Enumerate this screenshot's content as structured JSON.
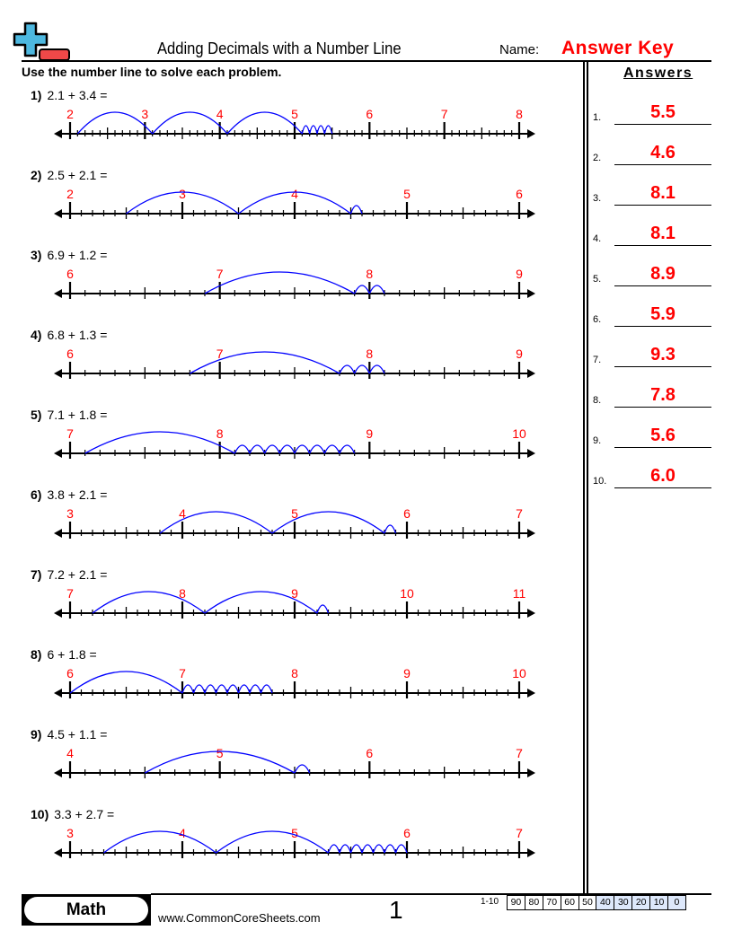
{
  "header": {
    "title": "Adding Decimals with a Number Line",
    "name_label": "Name:",
    "name_value": "Answer Key",
    "instructions": "Use the number line to solve each problem.",
    "logo_icon": "plus-minus-logo-icon"
  },
  "colors": {
    "label_red": "#ff0000",
    "jump_blue": "#0000ff",
    "score_highlight": "#dde8fb"
  },
  "problems": [
    {
      "number": "1)",
      "expression": "2.1 + 3.4 =",
      "min": 2,
      "max": 8,
      "start": 2.1,
      "whole_jumps": 3,
      "tenth_jumps": 4
    },
    {
      "number": "2)",
      "expression": "2.5 + 2.1 =",
      "min": 2,
      "max": 6,
      "start": 2.5,
      "whole_jumps": 2,
      "tenth_jumps": 1
    },
    {
      "number": "3)",
      "expression": "6.9 + 1.2 =",
      "min": 6,
      "max": 9,
      "start": 6.9,
      "whole_jumps": 1,
      "tenth_jumps": 2
    },
    {
      "number": "4)",
      "expression": "6.8 + 1.3 =",
      "min": 6,
      "max": 9,
      "start": 6.8,
      "whole_jumps": 1,
      "tenth_jumps": 3
    },
    {
      "number": "5)",
      "expression": "7.1 + 1.8 =",
      "min": 7,
      "max": 10,
      "start": 7.1,
      "whole_jumps": 1,
      "tenth_jumps": 8
    },
    {
      "number": "6)",
      "expression": "3.8 + 2.1 =",
      "min": 3,
      "max": 7,
      "start": 3.8,
      "whole_jumps": 2,
      "tenth_jumps": 1
    },
    {
      "number": "7)",
      "expression": "7.2 + 2.1 =",
      "min": 7,
      "max": 11,
      "start": 7.2,
      "whole_jumps": 2,
      "tenth_jumps": 1
    },
    {
      "number": "8)",
      "expression": "6 + 1.8 =",
      "min": 6,
      "max": 10,
      "start": 6,
      "whole_jumps": 1,
      "tenth_jumps": 8
    },
    {
      "number": "9)",
      "expression": "4.5 + 1.1 =",
      "min": 4,
      "max": 7,
      "start": 4.5,
      "whole_jumps": 1,
      "tenth_jumps": 1
    },
    {
      "number": "10)",
      "expression": "3.3 + 2.7 =",
      "min": 3,
      "max": 7,
      "start": 3.3,
      "whole_jumps": 2,
      "tenth_jumps": 7
    }
  ],
  "answers": {
    "title": "Answers",
    "items": [
      {
        "num": "1.",
        "value": "5.5"
      },
      {
        "num": "2.",
        "value": "4.6"
      },
      {
        "num": "3.",
        "value": "8.1"
      },
      {
        "num": "4.",
        "value": "8.1"
      },
      {
        "num": "5.",
        "value": "8.9"
      },
      {
        "num": "6.",
        "value": "5.9"
      },
      {
        "num": "7.",
        "value": "9.3"
      },
      {
        "num": "8.",
        "value": "7.8"
      },
      {
        "num": "9.",
        "value": "5.6"
      },
      {
        "num": "10.",
        "value": "6.0"
      }
    ]
  },
  "footer": {
    "subject": "Math",
    "website": "www.CommonCoreSheets.com",
    "page_number": "1",
    "score_label": "1-10",
    "scores": [
      "90",
      "80",
      "70",
      "60",
      "50",
      "40",
      "30",
      "20",
      "10",
      "0"
    ]
  }
}
